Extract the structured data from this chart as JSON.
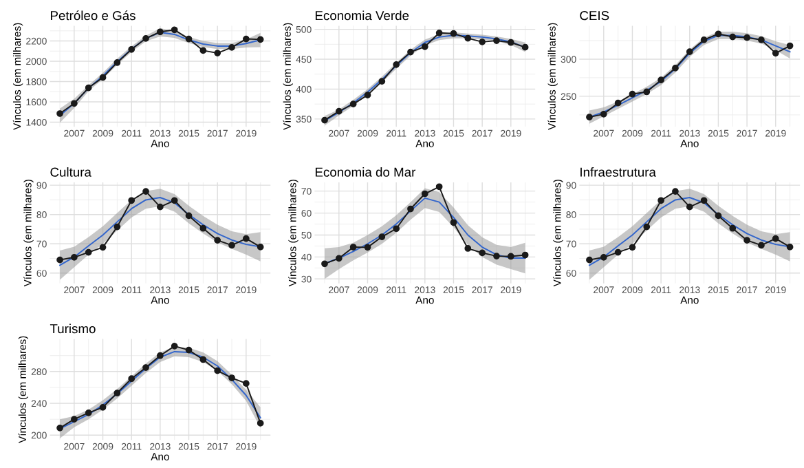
{
  "chart_data": [
    {
      "type": "line",
      "title": "Petróleo e Gás",
      "xlabel": "Ano",
      "ylabel": "Vínculos (em milhares)",
      "x": [
        2006,
        2007,
        2008,
        2009,
        2010,
        2011,
        2012,
        2013,
        2014,
        2015,
        2016,
        2017,
        2018,
        2019,
        2020
      ],
      "xlim": [
        2005.3,
        2020.7
      ],
      "xticks": [
        2007,
        2009,
        2011,
        2013,
        2015,
        2017,
        2019
      ],
      "ylim": [
        1355,
        2350
      ],
      "yticks": [
        1400,
        1600,
        1800,
        2000,
        2200
      ],
      "grid": true,
      "series": [
        {
          "color": "#1a1a1a",
          "marker": "circle",
          "values": [
            1485,
            1585,
            1739,
            1840,
            1987,
            2117,
            2225,
            2290,
            2310,
            2220,
            2106,
            2081,
            2137,
            2220,
            2215
          ]
        },
        {
          "color": "#3366cc",
          "marker": "none",
          "values": [
            1465,
            1585,
            1735,
            1856,
            1995,
            2120,
            2225,
            2285,
            2265,
            2210,
            2170,
            2150,
            2150,
            2175,
            2210
          ],
          "lower": [
            1395,
            1540,
            1705,
            1826,
            1965,
            2092,
            2197,
            2245,
            2230,
            2180,
            2140,
            2120,
            2120,
            2135,
            2140
          ],
          "upper": [
            1535,
            1630,
            1765,
            1886,
            2025,
            2148,
            2253,
            2325,
            2300,
            2240,
            2200,
            2180,
            2180,
            2215,
            2280
          ]
        }
      ]
    },
    {
      "type": "line",
      "title": "Economia Verde",
      "xlabel": "Ano",
      "ylabel": "Vínculos (em milhares)",
      "x": [
        2006,
        2007,
        2008,
        2009,
        2010,
        2011,
        2012,
        2013,
        2014,
        2015,
        2016,
        2017,
        2018,
        2019,
        2020
      ],
      "xlim": [
        2005.3,
        2020.7
      ],
      "xticks": [
        2007,
        2009,
        2011,
        2013,
        2015,
        2017,
        2019
      ],
      "ylim": [
        337,
        506
      ],
      "yticks": [
        350,
        400,
        450,
        500
      ],
      "grid": true,
      "series": [
        {
          "color": "#1a1a1a",
          "marker": "circle",
          "values": [
            348,
            363,
            375,
            390,
            413,
            441,
            462,
            471,
            494,
            493,
            485,
            479,
            481,
            478,
            470
          ]
        },
        {
          "color": "#3366cc",
          "marker": "none",
          "values": [
            347,
            361,
            377,
            395,
            416,
            439,
            461,
            478,
            487,
            490,
            489,
            487,
            484,
            479,
            470
          ],
          "lower": [
            339,
            356,
            372,
            390,
            411,
            434,
            456,
            473,
            482,
            485,
            485,
            483,
            480,
            474,
            462
          ],
          "upper": [
            355,
            366,
            382,
            400,
            421,
            444,
            466,
            483,
            492,
            495,
            493,
            491,
            488,
            484,
            478
          ]
        }
      ]
    },
    {
      "type": "line",
      "title": "CEIS",
      "xlabel": "Ano",
      "ylabel": "Vínculos (em milhares)",
      "x": [
        2006,
        2007,
        2008,
        2009,
        2010,
        2011,
        2012,
        2013,
        2014,
        2015,
        2016,
        2017,
        2018,
        2019,
        2020
      ],
      "xlim": [
        2005.3,
        2020.7
      ],
      "xticks": [
        2007,
        2009,
        2011,
        2013,
        2015,
        2017,
        2019
      ],
      "ylim": [
        209,
        345
      ],
      "yticks": [
        250,
        300
      ],
      "grid": true,
      "series": [
        {
          "color": "#1a1a1a",
          "marker": "circle",
          "values": [
            222,
            226,
            241,
            253,
            256,
            272,
            288,
            310,
            326,
            334,
            330,
            329,
            326,
            308,
            318
          ]
        },
        {
          "color": "#3366cc",
          "marker": "none",
          "values": [
            222,
            229,
            238,
            248,
            258,
            270,
            287,
            308,
            324,
            332,
            332,
            330,
            326,
            318,
            310
          ],
          "lower": [
            213,
            223,
            233,
            243,
            253,
            265,
            282,
            303,
            319,
            327,
            327,
            325,
            321,
            312,
            301
          ],
          "upper": [
            231,
            235,
            243,
            253,
            263,
            275,
            292,
            313,
            329,
            337,
            337,
            335,
            331,
            324,
            319
          ]
        }
      ]
    },
    {
      "type": "line",
      "title": "Cultura",
      "xlabel": "Ano",
      "ylabel": "Vínculos (em milhares)",
      "x": [
        2006,
        2007,
        2008,
        2009,
        2010,
        2011,
        2012,
        2013,
        2014,
        2015,
        2016,
        2017,
        2018,
        2019,
        2020
      ],
      "xlim": [
        2005.3,
        2020.7
      ],
      "xticks": [
        2007,
        2009,
        2011,
        2013,
        2015,
        2017,
        2019
      ],
      "ylim": [
        56.5,
        91
      ],
      "yticks": [
        60,
        70,
        80,
        90
      ],
      "grid": true,
      "series": [
        {
          "color": "#1a1a1a",
          "marker": "circle",
          "values": [
            64.5,
            65.4,
            67.1,
            68.8,
            75.8,
            84.8,
            87.9,
            82.6,
            84.8,
            79.6,
            75.3,
            71.2,
            69.5,
            71.8,
            68.9
          ]
        },
        {
          "color": "#3366cc",
          "marker": "none",
          "values": [
            62.7,
            65.5,
            69.3,
            73.0,
            77.5,
            82.0,
            85.0,
            85.8,
            84.0,
            80.0,
            76.5,
            73.5,
            71.3,
            69.8,
            69.0
          ],
          "lower": [
            57.7,
            62,
            66.3,
            70,
            74.5,
            79,
            82,
            82.8,
            81,
            77,
            73.5,
            70.5,
            68.3,
            66.3,
            64
          ],
          "upper": [
            67.7,
            69,
            72.3,
            76,
            80.5,
            85,
            88,
            88.8,
            87,
            83,
            79.5,
            76.5,
            74.3,
            73.3,
            74
          ]
        }
      ]
    },
    {
      "type": "line",
      "title": "Economia do Mar",
      "xlabel": "Ano",
      "ylabel": "Vínculos (em milhares)",
      "x": [
        2006,
        2007,
        2008,
        2009,
        2010,
        2011,
        2012,
        2013,
        2014,
        2015,
        2016,
        2017,
        2018,
        2019,
        2020
      ],
      "xlim": [
        2005.3,
        2020.7
      ],
      "xticks": [
        2007,
        2009,
        2011,
        2013,
        2015,
        2017,
        2019
      ],
      "ylim": [
        28,
        74
      ],
      "yticks": [
        30,
        40,
        50,
        60,
        70
      ],
      "grid": true,
      "series": [
        {
          "color": "#1a1a1a",
          "marker": "circle",
          "values": [
            36.9,
            39.4,
            44.5,
            44.4,
            49.2,
            52.9,
            61.9,
            68.8,
            72,
            55.7,
            43.9,
            41.9,
            40.4,
            40.3,
            40.9
          ]
        },
        {
          "color": "#3366cc",
          "marker": "none",
          "values": [
            37,
            39.5,
            42.5,
            46,
            50,
            55,
            61,
            66.8,
            65,
            58,
            50,
            44.5,
            41,
            39.5,
            39.5
          ],
          "lower": [
            30,
            34.5,
            38.5,
            42,
            46,
            51,
            57,
            62.3,
            60.5,
            53.5,
            45.5,
            40,
            36.5,
            34.5,
            32.5
          ],
          "upper": [
            44,
            44.5,
            46.5,
            50,
            54,
            59,
            65,
            71.3,
            69.5,
            62.5,
            54.5,
            49,
            45.5,
            44.5,
            46.5
          ]
        }
      ]
    },
    {
      "type": "line",
      "title": "Infraestrutura",
      "xlabel": "Ano",
      "ylabel": "Vínculos (em milhares)",
      "x": [
        2006,
        2007,
        2008,
        2009,
        2010,
        2011,
        2012,
        2013,
        2014,
        2015,
        2016,
        2017,
        2018,
        2019,
        2020
      ],
      "xlim": [
        2005.3,
        2020.7
      ],
      "xticks": [
        2007,
        2009,
        2011,
        2013,
        2015,
        2017,
        2019
      ],
      "ylim": [
        56.5,
        91
      ],
      "yticks": [
        60,
        70,
        80,
        90
      ],
      "grid": true,
      "series": [
        {
          "color": "#1a1a1a",
          "marker": "circle",
          "values": [
            64.5,
            65.4,
            67.1,
            68.8,
            75.8,
            84.8,
            87.9,
            82.6,
            84.8,
            79.6,
            75.3,
            71.2,
            69.5,
            71.8,
            68.9
          ]
        },
        {
          "color": "#3366cc",
          "marker": "none",
          "values": [
            62.7,
            65.5,
            69.3,
            73.0,
            77.5,
            82.0,
            85.0,
            85.8,
            84.0,
            80.0,
            76.5,
            73.5,
            71.3,
            69.8,
            69.0
          ],
          "lower": [
            57.7,
            62,
            66.3,
            70,
            74.5,
            79,
            82,
            82.8,
            81,
            77,
            73.5,
            70.5,
            68.3,
            66.3,
            64
          ],
          "upper": [
            67.7,
            69,
            72.3,
            76,
            80.5,
            85,
            88,
            88.8,
            87,
            83,
            79.5,
            76.5,
            74.3,
            73.3,
            74
          ]
        }
      ]
    },
    {
      "type": "line",
      "title": "Turismo",
      "xlabel": "Ano",
      "ylabel": "Vínculos (em milhares)",
      "x": [
        2006,
        2007,
        2008,
        2009,
        2010,
        2011,
        2012,
        2013,
        2014,
        2015,
        2016,
        2017,
        2018,
        2019,
        2020
      ],
      "xlim": [
        2005.3,
        2020.7
      ],
      "xticks": [
        2007,
        2009,
        2011,
        2013,
        2015,
        2017,
        2019
      ],
      "ylim": [
        194,
        321
      ],
      "yticks": [
        200,
        240,
        280
      ],
      "grid": true,
      "series": [
        {
          "color": "#1a1a1a",
          "marker": "circle",
          "values": [
            209,
            220,
            228,
            235,
            253,
            271,
            285,
            300,
            312,
            307,
            295,
            281,
            272,
            265,
            215
          ]
        },
        {
          "color": "#3366cc",
          "marker": "none",
          "values": [
            208,
            217,
            226,
            238,
            252,
            268,
            284,
            298,
            305,
            304,
            298,
            287,
            270,
            250,
            222
          ],
          "lower": [
            196,
            210,
            220,
            232,
            246,
            262,
            278,
            292,
            299,
            298,
            292,
            281,
            264,
            243,
            209
          ],
          "upper": [
            220,
            224,
            232,
            244,
            258,
            274,
            290,
            304,
            311,
            310,
            304,
            293,
            276,
            257,
            235
          ]
        }
      ]
    }
  ]
}
